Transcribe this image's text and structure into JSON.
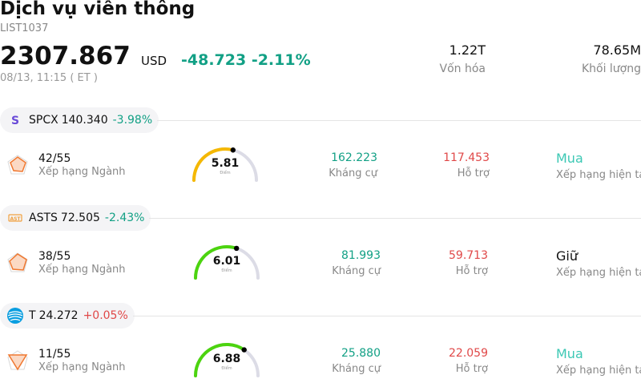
{
  "header": {
    "title": "Dịch vụ viễn thông",
    "code": "LIST1037",
    "price": "2307.867",
    "currency": "USD",
    "change": "-48.723 -2.11%",
    "time": "08/13, 11:15  ( ET )",
    "market_cap_value": "1.22T",
    "market_cap_label": "Vốn hóa",
    "volume_value": "78.65M",
    "volume_label": "Khối lượng"
  },
  "colors": {
    "negative": "#12a085",
    "positive": "#e04848",
    "buy": "#3cc8b4",
    "gauge_mid": "#f5b800",
    "gauge_high": "#4cd40f",
    "gauge_track": "#dcdce6"
  },
  "stocks": [
    {
      "logo": "spacex-logo-icon",
      "symbol": "SPCX",
      "price": "140.340",
      "change": "-3.98%",
      "change_dir": "neg",
      "rank": "42/55",
      "rank_label": "Xếp hạng Ngành",
      "score": "5.81",
      "score_value": 5.81,
      "score_label": "Điểm",
      "resistance": "162.223",
      "resistance_label": "Kháng cự",
      "support": "117.453",
      "support_label": "Hỗ trợ",
      "rating": "Mua",
      "rating_label": "Xếp hạng hiện tại"
    },
    {
      "logo": "ast-logo-icon",
      "symbol": "ASTS",
      "price": "72.505",
      "change": "-2.43%",
      "change_dir": "neg",
      "rank": "38/55",
      "rank_label": "Xếp hạng Ngành",
      "score": "6.01",
      "score_value": 6.01,
      "score_label": "Điểm",
      "resistance": "81.993",
      "resistance_label": "Kháng cự",
      "support": "59.713",
      "support_label": "Hỗ trợ",
      "rating": "Giữ",
      "rating_label": "Xếp hạng hiện tại"
    },
    {
      "logo": "att-logo-icon",
      "symbol": "T",
      "price": "24.272",
      "change": "+0.05%",
      "change_dir": "pos",
      "rank": "11/55",
      "rank_label": "Xếp hạng Ngành",
      "score": "6.88",
      "score_value": 6.88,
      "score_label": "Điểm",
      "resistance": "25.880",
      "resistance_label": "Kháng cự",
      "support": "22.059",
      "support_label": "Hỗ trợ",
      "rating": "Mua",
      "rating_label": "Xếp hạng hiện tại"
    }
  ]
}
